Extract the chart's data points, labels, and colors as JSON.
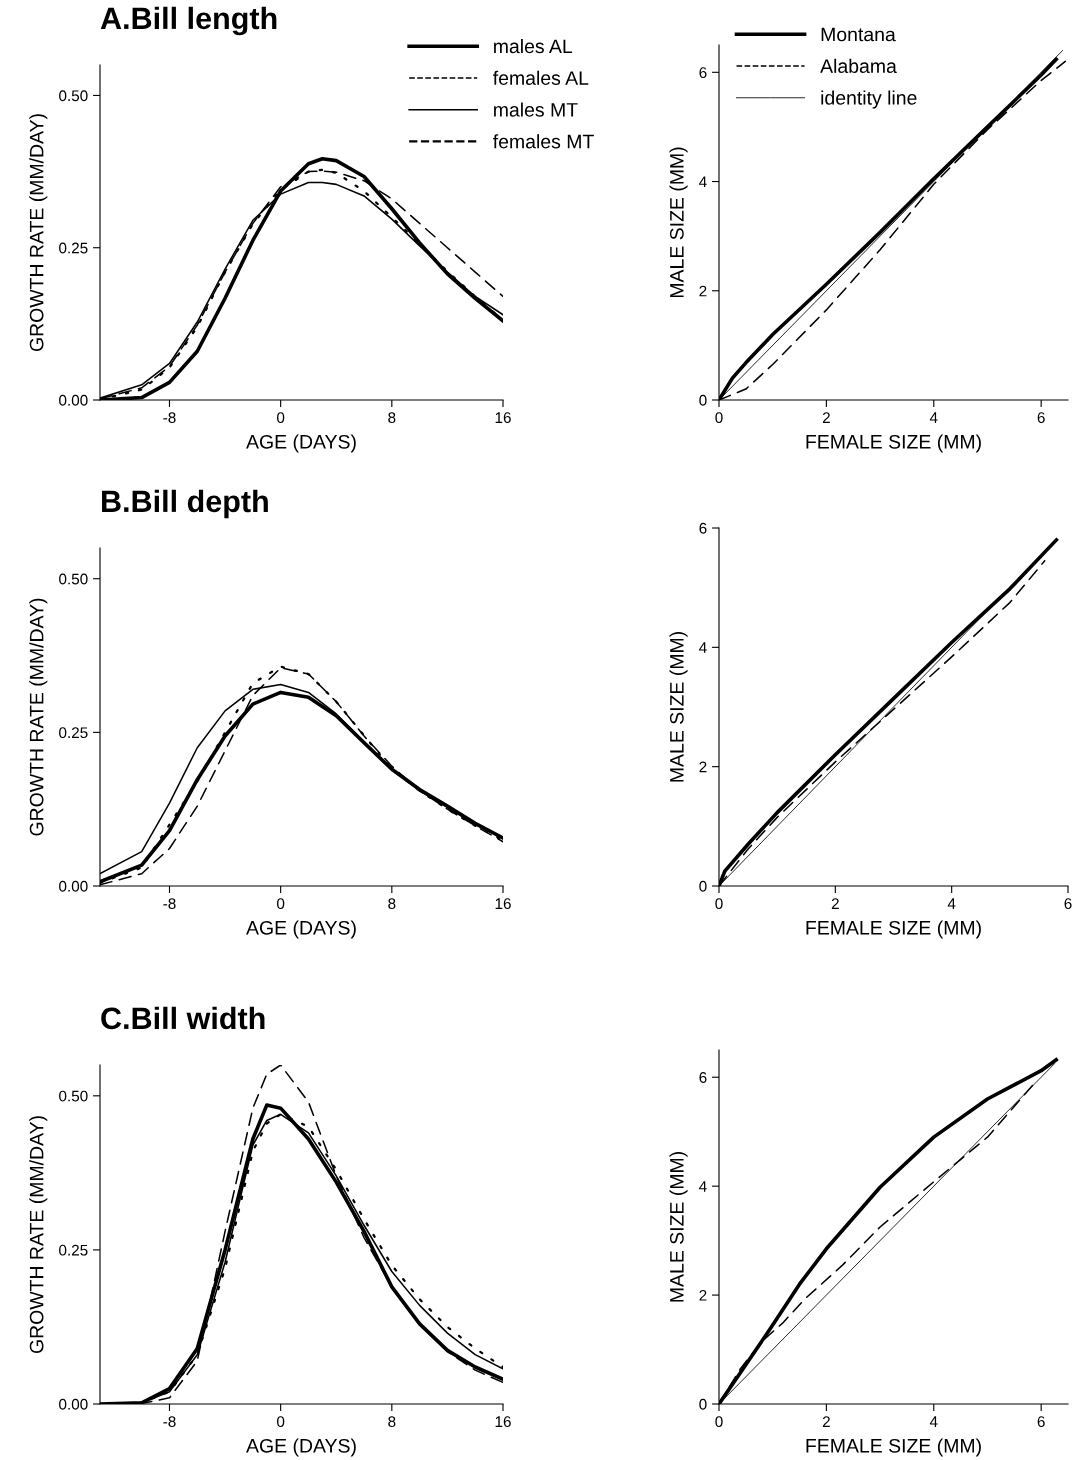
{
  "chart_data": [
    {
      "type": "line",
      "title": "A.Bill length",
      "xlabel": "AGE (DAYS)",
      "ylabel": "GROWTH RATE (MM/DAY)",
      "xlim": [
        -13,
        16
      ],
      "xticks": [
        -8,
        0,
        8,
        16
      ],
      "ylim": [
        0,
        0.55
      ],
      "yticks": [
        {
          "value": 0,
          "label": "0.00"
        },
        {
          "value": 0.25,
          "label": "0.25"
        },
        {
          "value": 0.5,
          "label": "0.50"
        }
      ],
      "legend": "top right",
      "grid": false,
      "x": [
        -13,
        -10,
        -8,
        -6,
        -4,
        -2,
        0,
        2,
        3,
        4,
        6,
        8,
        10,
        12,
        14,
        16
      ],
      "series": [
        {
          "name": "males AL",
          "color": "#000000",
          "line_style": "solid",
          "values": [
            0,
            0.004,
            0.029,
            0.08,
            0.167,
            0.262,
            0.343,
            0.388,
            0.396,
            0.393,
            0.367,
            0.314,
            0.258,
            0.207,
            0.167,
            0.13
          ]
        },
        {
          "name": "females AL",
          "color": "#000000",
          "line_style": "dashed",
          "values": [
            0.002,
            0.02,
            0.055,
            0.123,
            0.21,
            0.29,
            0.35,
            0.375,
            0.376,
            0.374,
            0.36,
            0.33,
            0.29,
            0.25,
            0.21,
            0.17
          ]
        },
        {
          "name": "males MT",
          "color": "#000000",
          "line_style": "solid",
          "values": [
            0.003,
            0.025,
            0.06,
            0.128,
            0.215,
            0.295,
            0.338,
            0.357,
            0.357,
            0.354,
            0.335,
            0.297,
            0.253,
            0.21,
            0.17,
            0.14
          ]
        },
        {
          "name": "females MT",
          "color": "#000000",
          "line_style": "dotted",
          "values": [
            0.001,
            0.017,
            0.053,
            0.12,
            0.21,
            0.289,
            0.345,
            0.375,
            0.378,
            0.373,
            0.343,
            0.3,
            0.256,
            0.211,
            0.17,
            0.131
          ]
        }
      ]
    },
    {
      "type": "line",
      "xlabel": "FEMALE SIZE (MM)",
      "ylabel": "MALE SIZE (MM)",
      "xlim": [
        0,
        6.5
      ],
      "xticks": [
        0,
        2,
        4,
        6
      ],
      "ylim": [
        0,
        6.5
      ],
      "yticks": [
        0,
        2,
        4,
        6
      ],
      "legend": "top left",
      "grid": false,
      "series": [
        {
          "name": "Montana",
          "color": "#000000",
          "line_style": "solid",
          "x": [
            0,
            0.25,
            0.5,
            1,
            2,
            3,
            4,
            5,
            6,
            6.28
          ],
          "values": [
            0,
            0.4,
            0.68,
            1.2,
            2.12,
            3.07,
            4.05,
            5.0,
            5.95,
            6.24
          ]
        },
        {
          "name": "Alabama",
          "color": "#000000",
          "line_style": "dashed",
          "x": [
            0,
            0.5,
            1,
            2,
            3,
            4,
            5,
            6,
            6.45
          ],
          "values": [
            0,
            0.2,
            0.65,
            1.65,
            2.75,
            3.95,
            4.95,
            5.85,
            6.2
          ]
        },
        {
          "name": "identity line",
          "color": "#000000",
          "line_style": "solid",
          "x": [
            0,
            6.4
          ],
          "values": [
            0,
            6.4
          ]
        }
      ]
    },
    {
      "type": "line",
      "title": "B.Bill depth",
      "xlabel": "AGE (DAYS)",
      "ylabel": "GROWTH RATE (MM/DAY)",
      "xlim": [
        -13,
        16
      ],
      "xticks": [
        -8,
        0,
        8,
        16
      ],
      "ylim": [
        0,
        0.55
      ],
      "yticks": [
        {
          "value": 0,
          "label": "0.00"
        },
        {
          "value": 0.25,
          "label": "0.25"
        },
        {
          "value": 0.5,
          "label": "0.50"
        }
      ],
      "grid": false,
      "x": [
        -13,
        -10,
        -8,
        -6,
        -4,
        -2,
        0,
        2,
        4,
        6,
        8,
        10,
        12,
        14,
        16
      ],
      "series": [
        {
          "color": "#000000",
          "line_style": "solid",
          "values": [
            0.007,
            0.034,
            0.09,
            0.173,
            0.244,
            0.296,
            0.315,
            0.307,
            0.277,
            0.233,
            0.19,
            0.157,
            0.13,
            0.102,
            0.078
          ]
        },
        {
          "color": "#000000",
          "line_style": "dashed",
          "values": [
            0.002,
            0.02,
            0.061,
            0.13,
            0.22,
            0.31,
            0.355,
            0.345,
            0.3,
            0.244,
            0.195,
            0.155,
            0.125,
            0.098,
            0.072
          ]
        },
        {
          "color": "#000000",
          "line_style": "solid",
          "values": [
            0.02,
            0.056,
            0.135,
            0.225,
            0.285,
            0.32,
            0.328,
            0.315,
            0.28,
            0.235,
            0.19,
            0.155,
            0.128,
            0.1,
            0.078
          ]
        },
        {
          "color": "#000000",
          "line_style": "dotted",
          "values": [
            0.005,
            0.03,
            0.1,
            0.17,
            0.25,
            0.33,
            0.357,
            0.345,
            0.3,
            0.245,
            0.19,
            0.155,
            0.125,
            0.098,
            0.075
          ]
        }
      ]
    },
    {
      "type": "line",
      "xlabel": "FEMALE SIZE (MM)",
      "ylabel": "MALE SIZE (MM)",
      "xlim": [
        0,
        6
      ],
      "xticks": [
        0,
        2,
        4,
        6
      ],
      "ylim": [
        0,
        6
      ],
      "yticks": [
        0,
        2,
        4,
        6
      ],
      "grid": false,
      "series": [
        {
          "color": "#000000",
          "line_style": "solid",
          "x": [
            0,
            0.1,
            0.5,
            1,
            2,
            3,
            4,
            5,
            5.8
          ],
          "values": [
            0,
            0.25,
            0.7,
            1.23,
            2.2,
            3.14,
            4.08,
            4.98,
            5.8
          ]
        },
        {
          "color": "#000000",
          "line_style": "dashed",
          "x": [
            0,
            0.5,
            1,
            2,
            3,
            4,
            5,
            5.6
          ],
          "values": [
            0,
            0.62,
            1.15,
            2.08,
            2.96,
            3.84,
            4.75,
            5.45
          ]
        },
        {
          "color": "#000000",
          "line_style": "solid",
          "x": [
            0,
            5.8
          ],
          "values": [
            0,
            5.8
          ]
        }
      ]
    },
    {
      "type": "line",
      "title": "C.Bill width",
      "xlabel": "AGE (DAYS)",
      "ylabel": "GROWTH RATE (MM/DAY)",
      "xlim": [
        -13,
        16
      ],
      "xticks": [
        -8,
        0,
        8,
        16
      ],
      "ylim": [
        0,
        0.55
      ],
      "yticks": [
        {
          "value": 0,
          "label": "0.00"
        },
        {
          "value": 0.25,
          "label": "0.25"
        },
        {
          "value": 0.5,
          "label": "0.50"
        }
      ],
      "grid": false,
      "x": [
        -13,
        -10,
        -8,
        -6,
        -4,
        -2,
        -1,
        0,
        2,
        4,
        6,
        8,
        10,
        12,
        14,
        16
      ],
      "series": [
        {
          "color": "#000000",
          "line_style": "solid",
          "values": [
            0,
            0.002,
            0.025,
            0.09,
            0.25,
            0.43,
            0.485,
            0.48,
            0.43,
            0.36,
            0.28,
            0.19,
            0.13,
            0.087,
            0.06,
            0.04
          ]
        },
        {
          "color": "#000000",
          "line_style": "dashed",
          "values": [
            0,
            0.001,
            0.01,
            0.07,
            0.28,
            0.48,
            0.535,
            0.55,
            0.49,
            0.37,
            0.27,
            0.19,
            0.13,
            0.085,
            0.055,
            0.035
          ]
        },
        {
          "color": "#000000",
          "line_style": "solid",
          "values": [
            0,
            0.002,
            0.02,
            0.08,
            0.23,
            0.42,
            0.46,
            0.47,
            0.44,
            0.37,
            0.29,
            0.215,
            0.16,
            0.115,
            0.08,
            0.057
          ]
        },
        {
          "color": "#000000",
          "line_style": "dotted",
          "values": [
            0,
            0.002,
            0.02,
            0.08,
            0.22,
            0.41,
            0.455,
            0.47,
            0.45,
            0.38,
            0.3,
            0.225,
            0.17,
            0.125,
            0.09,
            0.06
          ]
        }
      ]
    },
    {
      "type": "line",
      "xlabel": "FEMALE SIZE (MM)",
      "ylabel": "MALE SIZE (MM)",
      "xlim": [
        0,
        6.5
      ],
      "xticks": [
        0,
        2,
        4,
        6
      ],
      "ylim": [
        0,
        6.5
      ],
      "yticks": [
        0,
        2,
        4,
        6
      ],
      "grid": false,
      "series": [
        {
          "color": "#000000",
          "line_style": "solid",
          "x": [
            0,
            0.5,
            1,
            1.5,
            2,
            3,
            4,
            5,
            6,
            6.28
          ],
          "values": [
            0,
            0.72,
            1.45,
            2.2,
            2.85,
            3.98,
            4.9,
            5.6,
            6.12,
            6.32
          ]
        },
        {
          "color": "#000000",
          "line_style": "dashed",
          "x": [
            0,
            0.4,
            0.8,
            1.2,
            1.6,
            2.3,
            3,
            4,
            5,
            5.9
          ],
          "values": [
            0,
            0.65,
            1.15,
            1.5,
            1.93,
            2.55,
            3.25,
            4.08,
            4.9,
            5.92
          ]
        },
        {
          "color": "#000000",
          "line_style": "solid",
          "x": [
            0,
            6.25
          ],
          "values": [
            0,
            6.25
          ]
        }
      ]
    }
  ]
}
